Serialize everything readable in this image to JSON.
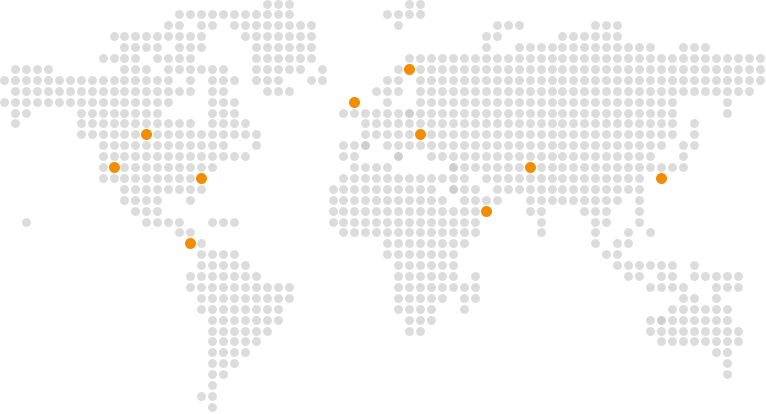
{
  "map": {
    "land_dot_color": "#dcdcdc",
    "land_dot_shade_color": "#cfcfcf",
    "marker_color": "#f28c00",
    "background_color": "#ffffff"
  }
}
